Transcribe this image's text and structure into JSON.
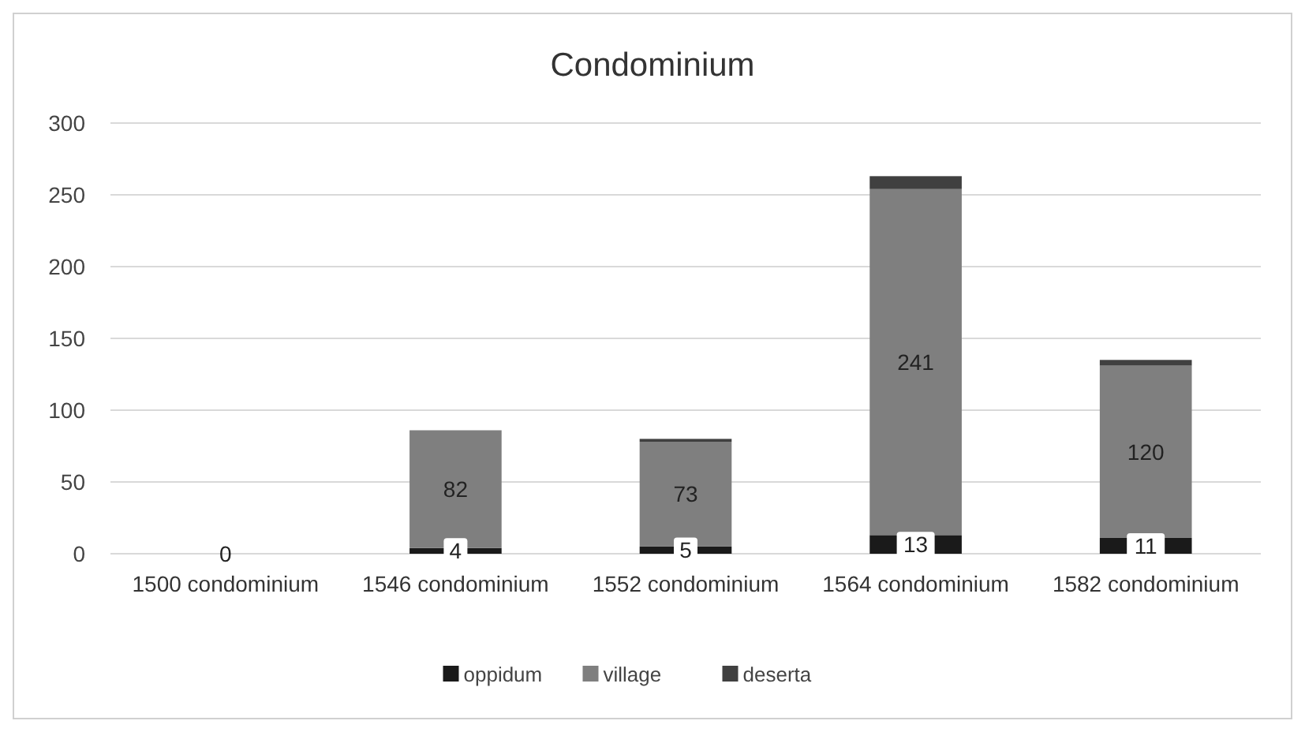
{
  "chart_data": {
    "type": "bar",
    "title": "Condominium",
    "stacked": true,
    "categories": [
      "1500 condominium",
      "1546 condominium",
      "1552 condominium",
      "1564 condominium",
      "1582 condominium"
    ],
    "series": [
      {
        "name": "oppidum",
        "color": "#1a1a1a",
        "values": [
          0,
          4,
          5,
          13,
          11
        ],
        "value_labels": [
          "0",
          "4",
          "5",
          "13",
          "11"
        ]
      },
      {
        "name": "village",
        "color": "#7f7f7f",
        "values": [
          0,
          82,
          73,
          241,
          120
        ],
        "value_labels": [
          null,
          "82",
          "73",
          "241",
          "120"
        ]
      },
      {
        "name": "deserta",
        "color": "#404040",
        "values": [
          0,
          0,
          2,
          9,
          4
        ]
      }
    ],
    "ylim": [
      0,
      300
    ],
    "yticks": [
      0,
      50,
      100,
      150,
      200,
      250,
      300
    ],
    "grid": "y",
    "legend": "bottom"
  }
}
